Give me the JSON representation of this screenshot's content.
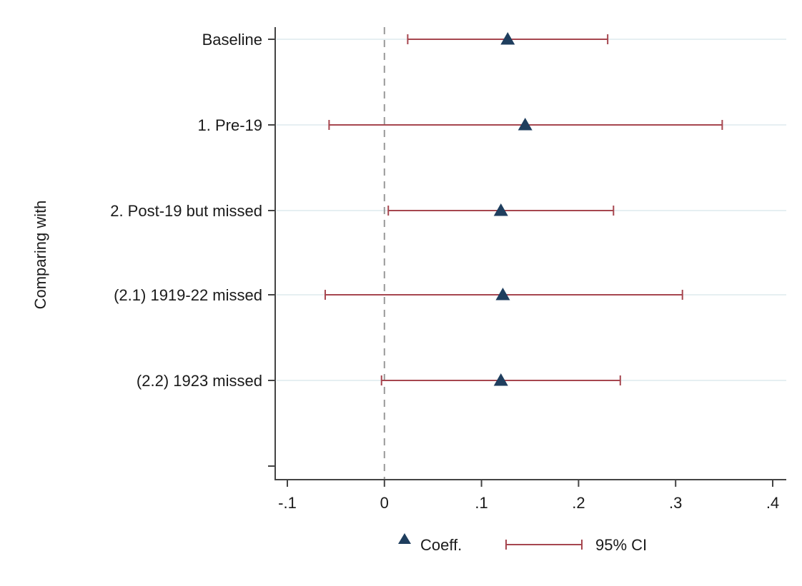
{
  "chart_data": {
    "type": "coefficient_plot",
    "orientation": "horizontal",
    "ylabel": "Comparing with",
    "xlabel": "",
    "xlim": [
      -0.1,
      0.4
    ],
    "x_ticks": [
      -0.1,
      0,
      0.1,
      0.2,
      0.3,
      0.4
    ],
    "x_tick_labels": [
      "-.1",
      "0",
      ".1",
      ".2",
      ".3",
      ".4"
    ],
    "reference_line_x": 0,
    "grid": true,
    "categories": [
      "Baseline",
      "1. Pre-19",
      "2. Post-19 but missed",
      "(2.1) 1919-22 missed",
      "(2.2) 1923 missed"
    ],
    "series": [
      {
        "name": "Coeff.",
        "marker": "triangle",
        "color": "#1f3e5e",
        "values": [
          0.127,
          0.145,
          0.12,
          0.122,
          0.12
        ]
      },
      {
        "name": "95% CI",
        "type": "range",
        "color": "#a6464f",
        "lower": [
          0.024,
          -0.057,
          0.004,
          -0.061,
          -0.003
        ],
        "upper": [
          0.23,
          0.348,
          0.236,
          0.307,
          0.243
        ]
      }
    ],
    "legend": {
      "position": "bottom",
      "items": [
        "Coeff.",
        "95% CI"
      ]
    }
  },
  "colors": {
    "marker": "#1f3e5e",
    "ci": "#a6464f",
    "grid": "#e6eff2",
    "axis": "#444444",
    "reference": "#999999"
  }
}
